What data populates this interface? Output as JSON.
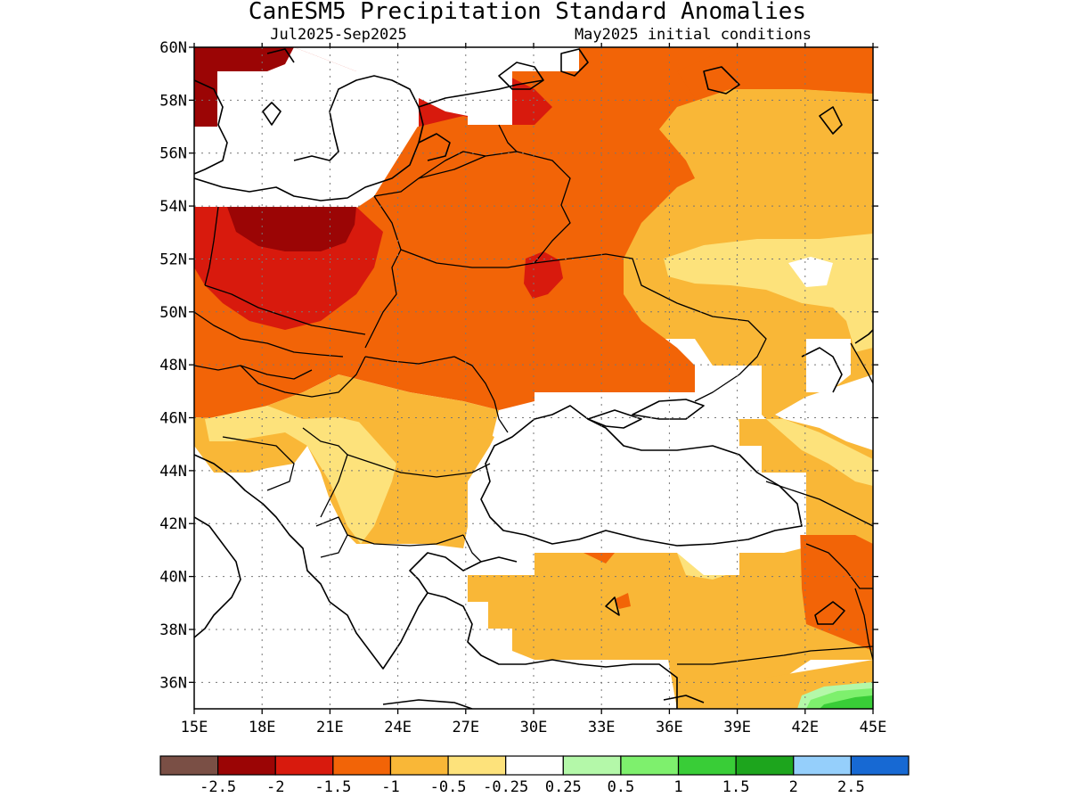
{
  "header": {
    "title": "CanESM5 Precipitation Standard Anomalies",
    "period": "Jul2025-Sep2025",
    "init": "May2025 initial conditions"
  },
  "axes": {
    "lon_min": 15,
    "lon_max": 45,
    "lat_min": 35,
    "lat_max": 60,
    "lon_ticks": [
      "15E",
      "18E",
      "21E",
      "24E",
      "27E",
      "30E",
      "33E",
      "36E",
      "39E",
      "42E",
      "45E"
    ],
    "lat_ticks": [
      "60N",
      "58N",
      "56N",
      "54N",
      "52N",
      "50N",
      "48N",
      "46N",
      "44N",
      "42N",
      "40N",
      "38N",
      "36N"
    ],
    "grid": "dotted"
  },
  "legend": {
    "colors": [
      "#7a4f45",
      "#9b0505",
      "#d81a0d",
      "#f26407",
      "#f9b737",
      "#fde27b",
      "#ffffff",
      "#b4f8a9",
      "#7ef06d",
      "#39cd37",
      "#1da51d",
      "#95cffb",
      "#1769d3"
    ],
    "labels": [
      "-2.5",
      "-2",
      "-1.5",
      "-1",
      "-0.5",
      "-0.25",
      "0.25",
      "0.5",
      "1",
      "1.5",
      "2",
      "2.5"
    ]
  },
  "map": {
    "colors": {
      "dark_red": "#9b0505",
      "red": "#d81a0d",
      "orange": "#f26407",
      "light_orange": "#f9b737",
      "yellow": "#fde27b",
      "white": "#ffffff",
      "light_green": "#b4f8a9",
      "green": "#7ef06d",
      "dark_green": "#39cd37",
      "darker_green": "#1da51d"
    }
  }
}
